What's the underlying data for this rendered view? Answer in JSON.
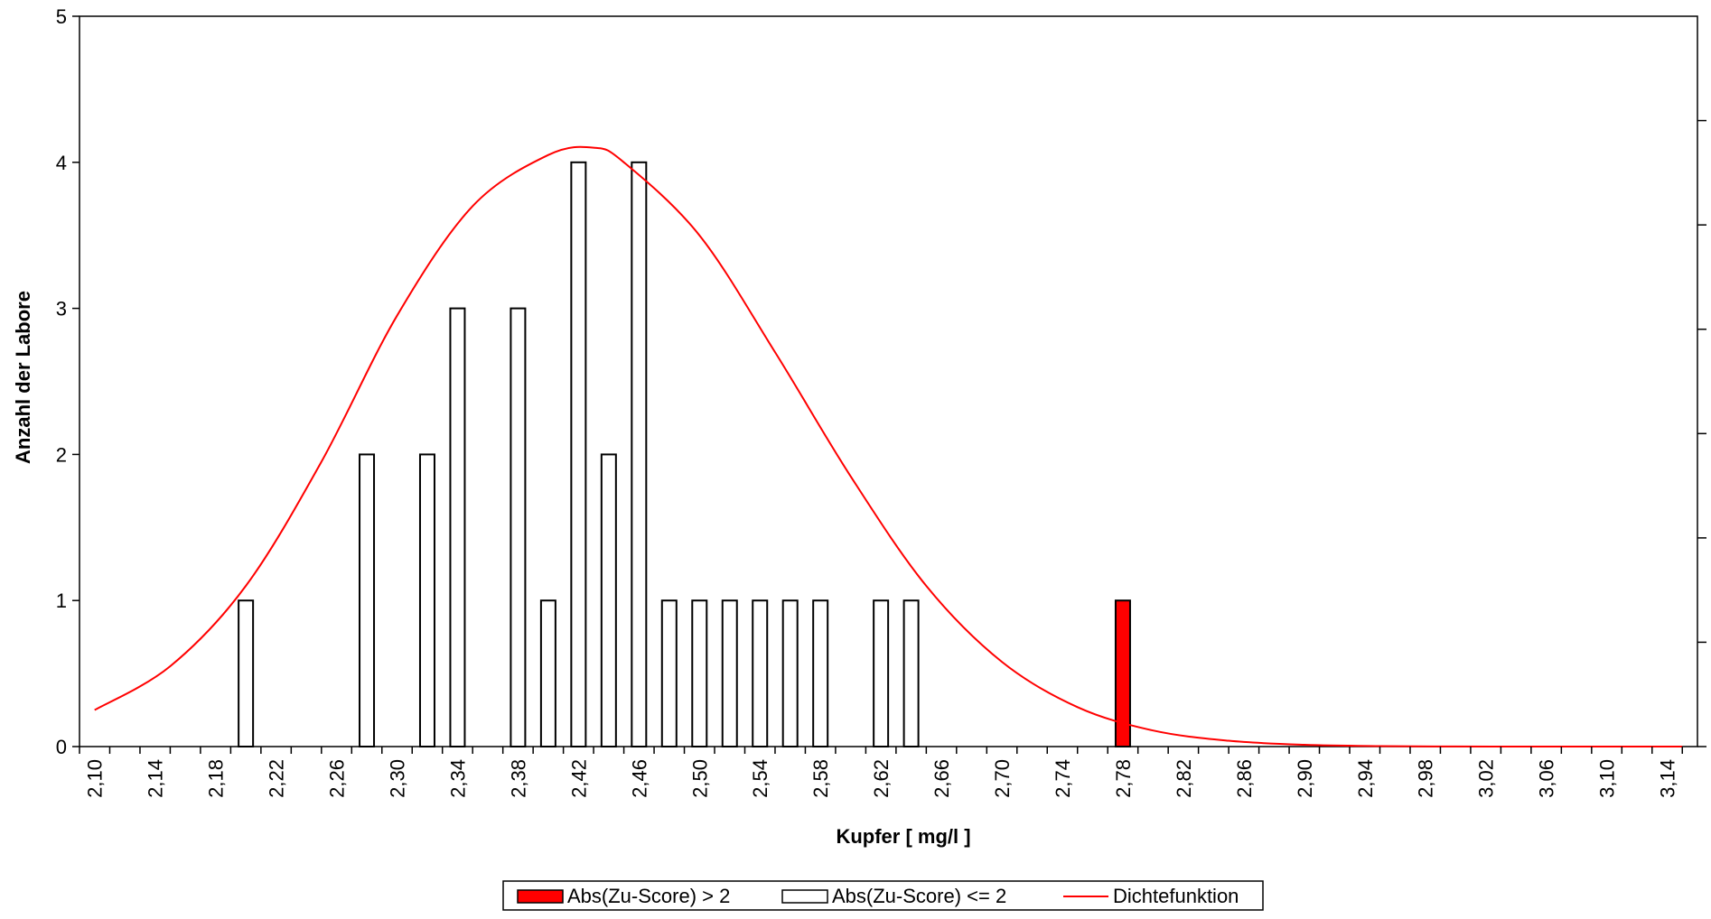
{
  "chart_data": {
    "type": "bar",
    "title": "",
    "xlabel": "Kupfer [ mg/l ]",
    "ylabel": "Anzahl der Labore",
    "x_tick_labels": [
      "2,10",
      "2,14",
      "2,18",
      "2,22",
      "2,26",
      "2,30",
      "2,34",
      "2,38",
      "2,42",
      "2,46",
      "2,50",
      "2,54",
      "2,58",
      "2,62",
      "2,66",
      "2,70",
      "2,74",
      "2,78",
      "2,82",
      "2,86",
      "2,90",
      "2,94",
      "2,98",
      "3,02",
      "3,06",
      "3,10",
      "3,14"
    ],
    "x_tick_values": [
      2.1,
      2.14,
      2.18,
      2.22,
      2.26,
      2.3,
      2.34,
      2.38,
      2.42,
      2.46,
      2.5,
      2.54,
      2.58,
      2.62,
      2.66,
      2.7,
      2.74,
      2.78,
      2.82,
      2.86,
      2.9,
      2.94,
      2.98,
      3.02,
      3.06,
      3.1,
      3.14
    ],
    "xlim": [
      2.09,
      3.16
    ],
    "ylim": [
      0,
      5
    ],
    "y_tick_values": [
      0,
      1,
      2,
      3,
      4,
      5
    ],
    "y_tick_labels": [
      "0",
      "1",
      "2",
      "3",
      "4",
      "5"
    ],
    "bin_width": 0.02,
    "series": [
      {
        "name": "Abs(Zu-Score) > 2",
        "kind": "bar",
        "color": "#ff0000",
        "x": [
          2.78
        ],
        "values": [
          1
        ]
      },
      {
        "name": "Abs(Zu-Score) <= 2",
        "kind": "bar",
        "color": "#ffffff",
        "x": [
          2.2,
          2.28,
          2.32,
          2.34,
          2.38,
          2.4,
          2.42,
          2.44,
          2.46,
          2.48,
          2.5,
          2.52,
          2.54,
          2.56,
          2.58,
          2.62,
          2.64
        ],
        "values": [
          1,
          2,
          2,
          3,
          3,
          1,
          4,
          2,
          4,
          1,
          1,
          1,
          1,
          1,
          1,
          1,
          1
        ]
      },
      {
        "name": "Dichtefunktion",
        "kind": "line",
        "color": "#ff0000",
        "x": [
          2.1,
          2.15,
          2.2,
          2.25,
          2.3,
          2.35,
          2.4,
          2.43,
          2.45,
          2.5,
          2.55,
          2.6,
          2.65,
          2.7,
          2.75,
          2.8,
          2.85,
          2.9,
          2.95,
          3.0,
          3.05,
          3.1,
          3.15
        ],
        "values": [
          0.25,
          0.55,
          1.1,
          1.95,
          2.95,
          3.7,
          4.05,
          4.1,
          4.0,
          3.5,
          2.7,
          1.85,
          1.1,
          0.58,
          0.27,
          0.11,
          0.04,
          0.012,
          0.003,
          0.0007,
          0.0001,
          0.0,
          0.0
        ]
      }
    ],
    "grid": false,
    "legend_position": "bottom-center"
  }
}
